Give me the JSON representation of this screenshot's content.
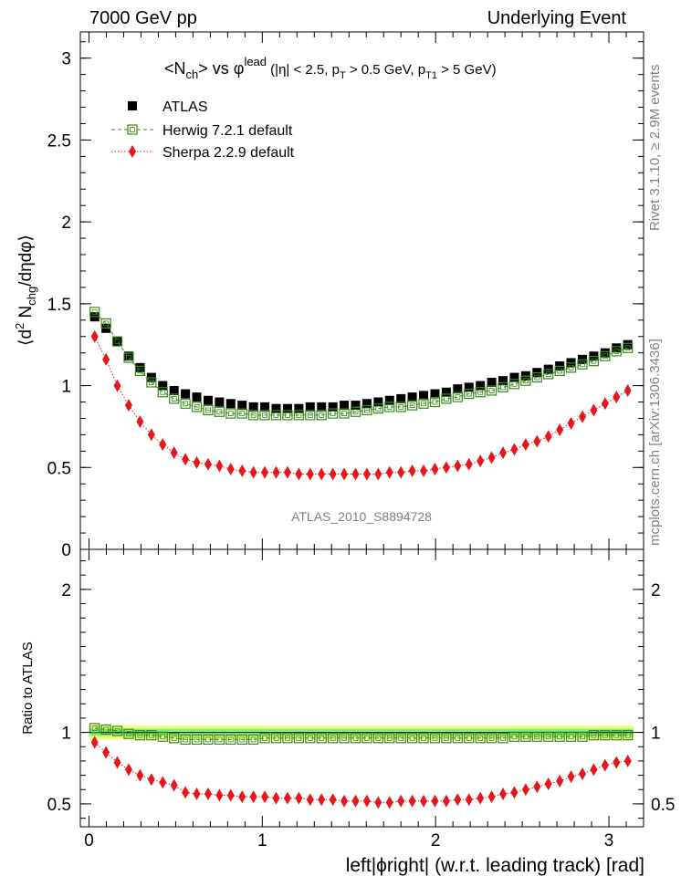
{
  "header": {
    "left": "7000 GeV pp",
    "right": "Underlying Event"
  },
  "side_labels": {
    "rivet": "Rivet 3.1.10, ≥ 2.9M events",
    "mcplots": "mcplots.cern.ch [arXiv:1306.3436]"
  },
  "watermark": "ATLAS_2010_S8894728",
  "colors": {
    "atlas": "#000000",
    "herwig": "#3a8a1a",
    "sherpa": "#e8161a",
    "band_outer": "#f2ff7a",
    "band_inner": "#7cf27c"
  },
  "chart_data": [
    {
      "type": "scatter",
      "title": "<N_ch> vs φ^lead (|η| < 2.5, p_T > 0.5 GeV, p_T1 > 5 GeV)",
      "title_parts": {
        "a": "<N",
        "a_sub": "ch",
        "b": "> vs φ",
        "b_sup": "lead",
        "c": " (|η| < 2.5, p",
        "c_sub": "T",
        "d": " > 0.5 GeV, p",
        "d_sub": "T1",
        "e": " > 5 GeV)"
      },
      "ylabel": "⟨d² N_chg/dηdφ⟩",
      "ylabel_parts": {
        "a": "⟨d",
        "sup": "2",
        "b": " N",
        "sub": "chg",
        "c": "/dηdφ⟩"
      },
      "xlim": [
        -0.05,
        3.2
      ],
      "ylim": [
        0,
        3.16
      ],
      "yticks": [
        "0",
        "0.5",
        "1",
        "1.5",
        "2",
        "2.5",
        "3"
      ],
      "ytick_values": [
        0,
        0.5,
        1,
        1.5,
        2,
        2.5,
        3
      ],
      "legend": [
        {
          "name": "ATLAS",
          "style": "filled-square"
        },
        {
          "name": "Herwig 7.2.1 default",
          "style": "open-square-dashed"
        },
        {
          "name": "Sherpa 2.2.9 default",
          "style": "diamond-dotted"
        }
      ],
      "x": [
        0.0327,
        0.0982,
        0.1636,
        0.2291,
        0.2945,
        0.36,
        0.4254,
        0.4909,
        0.5563,
        0.6218,
        0.6872,
        0.7527,
        0.8181,
        0.8836,
        0.949,
        1.0145,
        1.0799,
        1.1454,
        1.2108,
        1.2763,
        1.3417,
        1.4072,
        1.4726,
        1.5381,
        1.6035,
        1.669,
        1.7344,
        1.7999,
        1.8653,
        1.9308,
        1.9962,
        2.0617,
        2.1271,
        2.1926,
        2.258,
        2.3235,
        2.3889,
        2.4544,
        2.5198,
        2.5853,
        2.6507,
        2.7162,
        2.7816,
        2.8471,
        2.9125,
        2.978,
        3.0434,
        3.1089
      ],
      "series": [
        {
          "name": "ATLAS",
          "values": [
            1.42,
            1.35,
            1.27,
            1.18,
            1.11,
            1.05,
            1.0,
            0.97,
            0.95,
            0.93,
            0.91,
            0.9,
            0.89,
            0.88,
            0.87,
            0.87,
            0.86,
            0.86,
            0.86,
            0.87,
            0.87,
            0.87,
            0.88,
            0.88,
            0.89,
            0.9,
            0.91,
            0.92,
            0.93,
            0.94,
            0.95,
            0.96,
            0.98,
            0.99,
            1.0,
            1.02,
            1.03,
            1.05,
            1.06,
            1.08,
            1.1,
            1.12,
            1.14,
            1.16,
            1.18,
            1.2,
            1.23,
            1.25
          ]
        },
        {
          "name": "Herwig 7.2.1 default",
          "values": [
            1.45,
            1.38,
            1.27,
            1.17,
            1.09,
            1.02,
            0.96,
            0.92,
            0.89,
            0.87,
            0.85,
            0.84,
            0.83,
            0.83,
            0.82,
            0.82,
            0.82,
            0.82,
            0.82,
            0.82,
            0.82,
            0.83,
            0.83,
            0.84,
            0.85,
            0.86,
            0.87,
            0.87,
            0.88,
            0.89,
            0.9,
            0.92,
            0.93,
            0.95,
            0.96,
            0.97,
            0.99,
            1.01,
            1.03,
            1.05,
            1.07,
            1.09,
            1.11,
            1.13,
            1.15,
            1.18,
            1.21,
            1.23
          ]
        },
        {
          "name": "Sherpa 2.2.9 default",
          "values": [
            1.3,
            1.16,
            1.0,
            0.88,
            0.78,
            0.7,
            0.64,
            0.59,
            0.55,
            0.53,
            0.52,
            0.51,
            0.49,
            0.48,
            0.47,
            0.47,
            0.47,
            0.47,
            0.46,
            0.46,
            0.46,
            0.46,
            0.46,
            0.46,
            0.46,
            0.46,
            0.47,
            0.47,
            0.48,
            0.48,
            0.49,
            0.5,
            0.51,
            0.52,
            0.54,
            0.56,
            0.59,
            0.61,
            0.64,
            0.66,
            0.69,
            0.73,
            0.77,
            0.81,
            0.85,
            0.89,
            0.93,
            0.97
          ]
        }
      ]
    },
    {
      "type": "scatter",
      "ylabel": "Ratio to ATLAS",
      "xlabel": "left|ϕright| (w.r.t. leading track) [rad]",
      "xlabel_parts": {
        "a": "left|",
        "b": "ϕ",
        "c": "right| (w.r.t. leading track) [rad]"
      },
      "xlim": [
        -0.05,
        3.2
      ],
      "ylim": [
        0.34,
        2.28
      ],
      "yticks": [
        "0.5",
        "1",
        "2"
      ],
      "ytick_values": [
        0.5,
        1,
        2
      ],
      "xticks": [
        "0",
        "1",
        "2",
        "3"
      ],
      "xtick_values": [
        0,
        1,
        2,
        3
      ],
      "band": {
        "outer": [
          0.95,
          1.05
        ],
        "inner": [
          0.975,
          1.025
        ]
      },
      "series": [
        {
          "name": "Herwig 7.2.1 default",
          "values": [
            1.03,
            1.02,
            1.01,
            0.99,
            0.98,
            0.98,
            0.97,
            0.96,
            0.95,
            0.95,
            0.95,
            0.95,
            0.95,
            0.95,
            0.95,
            0.96,
            0.96,
            0.96,
            0.96,
            0.96,
            0.96,
            0.96,
            0.96,
            0.96,
            0.96,
            0.96,
            0.96,
            0.96,
            0.96,
            0.96,
            0.96,
            0.96,
            0.96,
            0.96,
            0.96,
            0.96,
            0.96,
            0.97,
            0.97,
            0.97,
            0.97,
            0.97,
            0.97,
            0.97,
            0.98,
            0.98,
            0.98,
            0.98
          ]
        },
        {
          "name": "Sherpa 2.2.9 default",
          "values": [
            0.93,
            0.86,
            0.79,
            0.74,
            0.7,
            0.67,
            0.65,
            0.63,
            0.58,
            0.57,
            0.57,
            0.56,
            0.56,
            0.55,
            0.55,
            0.55,
            0.54,
            0.54,
            0.54,
            0.53,
            0.53,
            0.53,
            0.52,
            0.52,
            0.52,
            0.51,
            0.51,
            0.52,
            0.52,
            0.52,
            0.52,
            0.52,
            0.53,
            0.53,
            0.54,
            0.55,
            0.57,
            0.58,
            0.6,
            0.62,
            0.64,
            0.66,
            0.69,
            0.71,
            0.74,
            0.77,
            0.79,
            0.8
          ]
        }
      ]
    }
  ]
}
